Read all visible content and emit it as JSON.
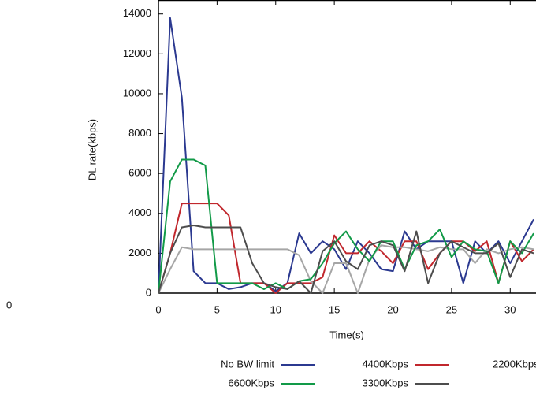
{
  "chart_data": {
    "type": "line",
    "x_label": "Time(s)",
    "y_label": "DL rate(kbps)",
    "x": [
      0,
      1,
      2,
      3,
      4,
      5,
      6,
      7,
      8,
      9,
      10,
      11,
      12,
      13,
      14,
      15,
      16,
      17,
      18,
      19,
      20,
      21,
      22,
      23,
      24,
      25,
      26,
      27,
      28,
      29,
      30,
      31,
      32
    ],
    "series": [
      {
        "name": "No BW limit",
        "color": "#2b3990",
        "values": [
          0,
          13800,
          9800,
          1100,
          500,
          500,
          200,
          300,
          500,
          500,
          100,
          500,
          3000,
          2000,
          2600,
          2200,
          1200,
          2600,
          2000,
          1200,
          1100,
          3100,
          2200,
          2600,
          2600,
          2600,
          500,
          2600,
          2000,
          2600,
          1500,
          2600,
          3700
        ]
      },
      {
        "name": "4400Kbps",
        "color": "#c1272d",
        "values": [
          0,
          2000,
          4500,
          4500,
          4500,
          4500,
          3900,
          500,
          500,
          500,
          0,
          500,
          500,
          500,
          800,
          2900,
          2000,
          2000,
          2600,
          2100,
          1500,
          2600,
          2600,
          1200,
          2000,
          2600,
          2600,
          2100,
          2600,
          500,
          2600,
          1600,
          2200
        ]
      },
      {
        "name": "2200Kbps",
        "color": "#a6a6a6",
        "values": [
          0,
          1200,
          2300,
          2200,
          2200,
          2200,
          2200,
          2200,
          2200,
          2200,
          2200,
          2200,
          1900,
          600,
          0,
          1500,
          1500,
          0,
          1700,
          2400,
          2300,
          2300,
          2200,
          2100,
          2300,
          2200,
          2200,
          1500,
          2200,
          2000,
          2200,
          2300,
          2200
        ]
      },
      {
        "name": "6600Kbps",
        "color": "#129a48",
        "values": [
          0,
          5600,
          6700,
          6700,
          6400,
          500,
          500,
          500,
          500,
          200,
          500,
          200,
          600,
          700,
          1500,
          2500,
          3100,
          2200,
          1600,
          2600,
          2600,
          1200,
          2400,
          2600,
          3200,
          1800,
          2600,
          2200,
          2100,
          500,
          2600,
          2000,
          3000
        ]
      },
      {
        "name": "3300Kbps",
        "color": "#4d4d4d",
        "values": [
          0,
          2000,
          3300,
          3400,
          3300,
          3300,
          3300,
          3300,
          1500,
          500,
          300,
          200,
          600,
          0,
          2100,
          2600,
          1600,
          1200,
          2400,
          2600,
          2400,
          1100,
          3100,
          500,
          2000,
          2600,
          2300,
          2000,
          2000,
          2500,
          800,
          2200,
          2000
        ]
      }
    ],
    "xlim": [
      0,
      32.2
    ],
    "ylim": [
      0,
      14700
    ],
    "xticks": [
      0,
      5,
      10,
      15,
      20,
      25,
      30
    ],
    "yticks": [
      0,
      2000,
      4000,
      6000,
      8000,
      10000,
      12000,
      14000
    ]
  },
  "left_fragment": {
    "tick_label": "0"
  }
}
